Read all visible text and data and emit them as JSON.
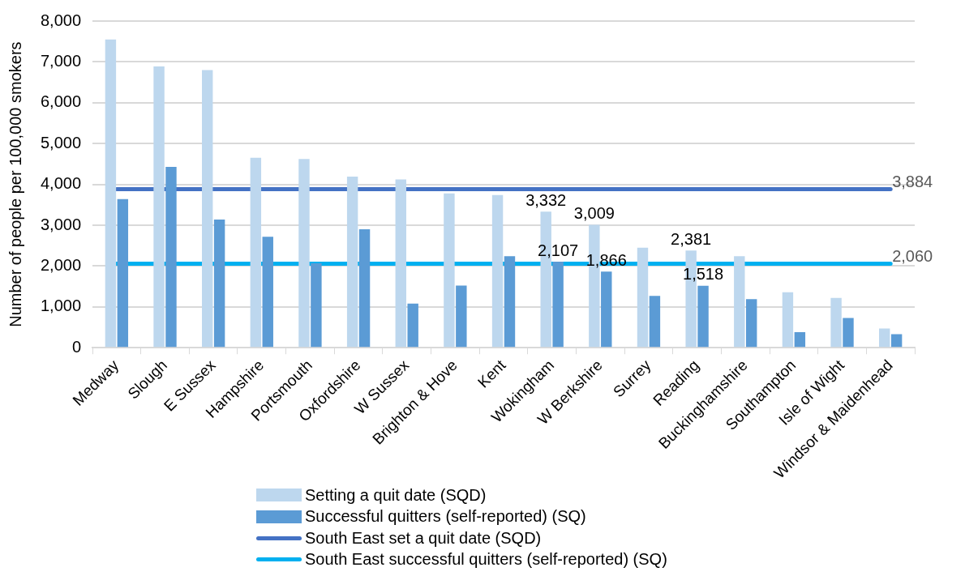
{
  "chart_data": {
    "type": "bar",
    "ylabel": "Number of people per 100,000 smokers",
    "categories": [
      "Medway",
      "Slough",
      "E Sussex",
      "Hampshire",
      "Portsmouth",
      "Oxfordshire",
      "W Sussex",
      "Brighton & Hove",
      "Kent",
      "Wokingham",
      "W Berkshire",
      "Surrey",
      "Reading",
      "Buckinghamshire",
      "Southampton",
      "Isle of Wight",
      "Windsor & Maidenhead"
    ],
    "series": [
      {
        "name": "Setting a quit date (SQD)",
        "color": "#bdd7ee",
        "values": [
          7550,
          6890,
          6800,
          4650,
          4620,
          4190,
          4120,
          3780,
          3740,
          3332,
          3009,
          2450,
          2381,
          2240,
          1360,
          1220,
          470
        ],
        "value_labels": [
          null,
          null,
          null,
          null,
          null,
          null,
          null,
          null,
          null,
          "3,332",
          "3,009",
          null,
          "2,381",
          null,
          null,
          null,
          null
        ]
      },
      {
        "name": "Successful quitters (self-reported) (SQ)",
        "color": "#5b9bd5",
        "values": [
          3640,
          4430,
          3140,
          2720,
          2070,
          2900,
          1080,
          1520,
          2240,
          2107,
          1866,
          1270,
          1518,
          1190,
          380,
          730,
          330
        ],
        "value_labels": [
          null,
          null,
          null,
          null,
          null,
          null,
          null,
          null,
          null,
          "2,107",
          "1,866",
          null,
          "1,518",
          null,
          null,
          null,
          null
        ]
      },
      {
        "name": "South East set a quit date (SQD)",
        "type": "line",
        "color": "#4472c4",
        "values": [
          3884,
          3884,
          3884,
          3884,
          3884,
          3884,
          3884,
          3884,
          3884,
          3884,
          3884,
          3884,
          3884,
          3884,
          3884,
          3884,
          3884
        ],
        "value_labels": [
          null,
          null,
          null,
          null,
          null,
          null,
          null,
          null,
          null,
          null,
          null,
          null,
          null,
          null,
          null,
          null,
          "3,884"
        ]
      },
      {
        "name": "South East successful quitters (self-reported) (SQ)",
        "type": "line",
        "color": "#00b0f0",
        "values": [
          2060,
          2060,
          2060,
          2060,
          2060,
          2060,
          2060,
          2060,
          2060,
          2060,
          2060,
          2060,
          2060,
          2060,
          2060,
          2060,
          2060
        ],
        "value_labels": [
          null,
          null,
          null,
          null,
          null,
          null,
          null,
          null,
          null,
          null,
          null,
          null,
          null,
          null,
          null,
          null,
          "2,060"
        ]
      }
    ],
    "ylim": [
      0,
      8000
    ],
    "yticks": [
      0,
      {
        "value": 1000,
        "label": "1,000"
      },
      {
        "value": 2000,
        "label": "2,000"
      },
      {
        "value": 3000,
        "label": "3,000"
      },
      {
        "value": 4000,
        "label": "4,000"
      },
      {
        "value": 5000,
        "label": "5,000"
      },
      {
        "value": 6000,
        "label": "6,000"
      },
      {
        "value": 7000,
        "label": "7,000"
      },
      {
        "value": 8000,
        "label": "8,000"
      }
    ],
    "grid": "y",
    "legend": "bottom",
    "marker": "none",
    "line_style": "solid"
  }
}
